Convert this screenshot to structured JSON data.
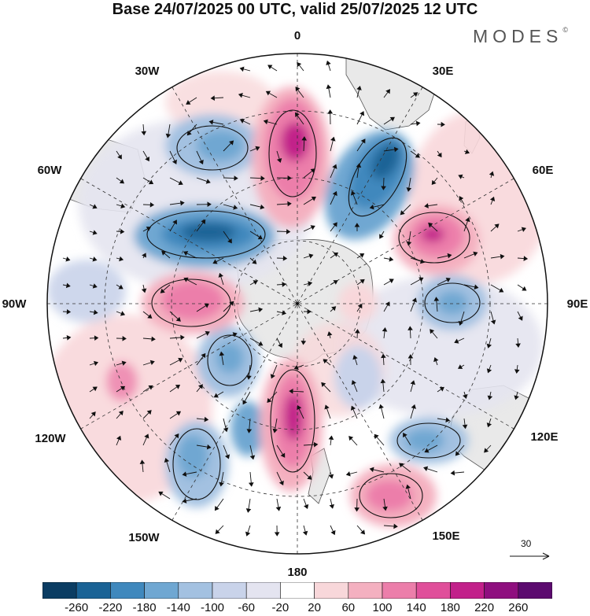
{
  "header": {
    "title": "Base 24/07/2025 00 UTC, valid 25/07/2025 12 UTC",
    "brand": "MODES",
    "brand_mark": "©"
  },
  "map": {
    "projection": "south-polar-stereographic",
    "longitude_labels": {
      "top": "0",
      "top_right": "30E",
      "upper_right": "60E",
      "right": "90E",
      "lower_right": "120E",
      "bottom_right": "150E",
      "bottom": "180",
      "bottom_left": "150W",
      "lower_left": "120W",
      "left": "90W",
      "upper_left": "60W",
      "top_left": "30W"
    },
    "reference_vector": "30"
  },
  "colorbar": {
    "ticks": [
      "-260",
      "-220",
      "-180",
      "-140",
      "-100",
      "-60",
      "-20",
      "20",
      "60",
      "100",
      "140",
      "180",
      "220",
      "260"
    ],
    "colors": [
      "#0b3d63",
      "#1a6396",
      "#3f88bd",
      "#6fa7d2",
      "#a3c1e1",
      "#c9d3ea",
      "#e4e4f0",
      "#ffffff",
      "#f8d7da",
      "#f4b0c0",
      "#ec7eaa",
      "#e04f9a",
      "#c2208a",
      "#8f0f7f",
      "#5c0a6f"
    ]
  },
  "colors": {
    "line": "#111111",
    "land": "#e9e9e9",
    "grid": "#333333"
  }
}
